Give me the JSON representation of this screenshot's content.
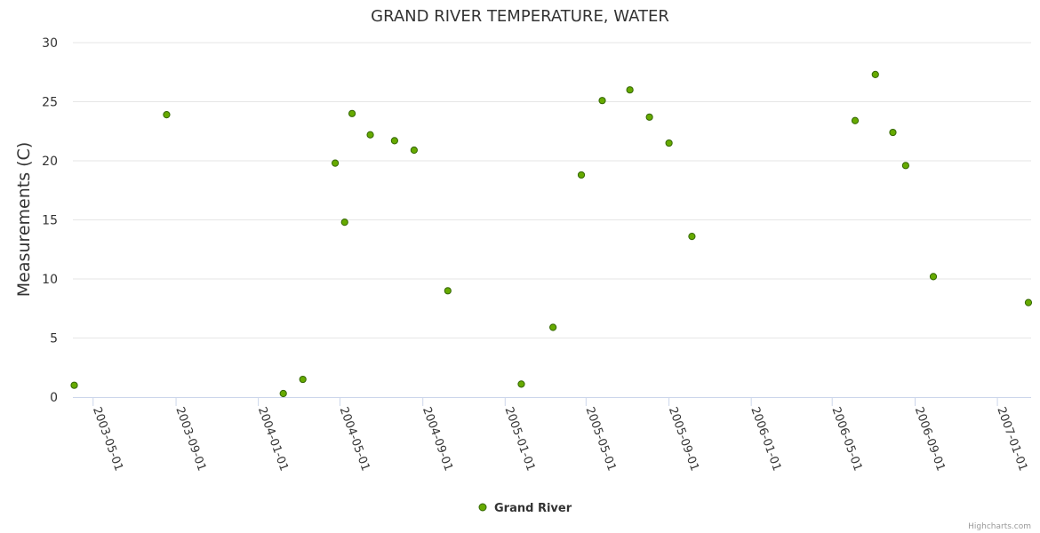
{
  "chart_data": {
    "type": "scatter",
    "title": "GRAND RIVER TEMPERATURE, WATER",
    "xlabel": "",
    "ylabel": "Measurements (C)",
    "ylim": [
      0,
      30
    ],
    "yticks": [
      0,
      5,
      10,
      15,
      20,
      25,
      30
    ],
    "xlim": [
      "2003-04-01",
      "2007-02-20"
    ],
    "xticks": [
      "2003-05-01",
      "2003-09-01",
      "2004-01-01",
      "2004-05-01",
      "2004-09-01",
      "2005-01-01",
      "2005-05-01",
      "2005-09-01",
      "2006-01-01",
      "2006-05-01",
      "2006-09-01",
      "2007-01-01"
    ],
    "grid": true,
    "legend": "bottom-center",
    "colors": {
      "marker_fill": "#66aa00",
      "marker_stroke": "#336600",
      "grid": "#e6e6e6",
      "axis": "#ccd6eb"
    },
    "series": [
      {
        "name": "Grand River",
        "points": [
          [
            "2003-04-03",
            1.0
          ],
          [
            "2003-08-18",
            23.9
          ],
          [
            "2004-02-07",
            0.3
          ],
          [
            "2004-03-07",
            1.5
          ],
          [
            "2004-04-24",
            19.8
          ],
          [
            "2004-05-08",
            14.8
          ],
          [
            "2004-05-19",
            24.0
          ],
          [
            "2004-06-15",
            22.2
          ],
          [
            "2004-07-21",
            21.7
          ],
          [
            "2004-08-19",
            20.9
          ],
          [
            "2004-10-08",
            9.0
          ],
          [
            "2005-01-25",
            1.1
          ],
          [
            "2005-03-13",
            5.9
          ],
          [
            "2005-04-24",
            18.8
          ],
          [
            "2005-05-25",
            25.1
          ],
          [
            "2005-07-05",
            26.0
          ],
          [
            "2005-08-03",
            23.7
          ],
          [
            "2005-09-01",
            21.5
          ],
          [
            "2005-10-05",
            13.6
          ],
          [
            "2006-06-04",
            23.4
          ],
          [
            "2006-07-04",
            27.3
          ],
          [
            "2006-07-30",
            22.4
          ],
          [
            "2006-08-18",
            19.6
          ],
          [
            "2006-09-28",
            10.2
          ],
          [
            "2007-02-16",
            8.0
          ]
        ]
      }
    ]
  },
  "credits": "Highcharts.com"
}
